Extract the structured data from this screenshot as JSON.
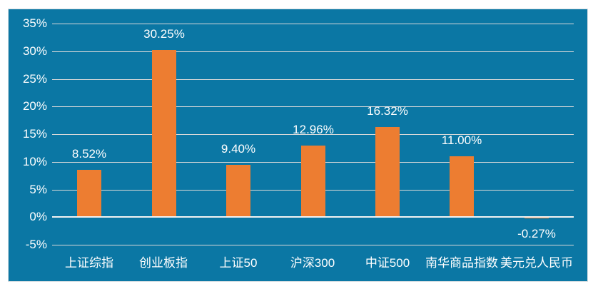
{
  "chart_data": {
    "type": "bar",
    "categories": [
      "上证综指",
      "创业板指",
      "上证50",
      "沪深300",
      "中证500",
      "南华商品指数",
      "美元兑人民币"
    ],
    "values": [
      8.52,
      30.25,
      9.4,
      12.96,
      16.32,
      11.0,
      -0.27
    ],
    "data_labels": [
      "8.52%",
      "30.25%",
      "9.40%",
      "12.96%",
      "16.32%",
      "11.00%",
      "-0.27%"
    ],
    "ylim": [
      -5,
      35
    ],
    "ytick_step": 5,
    "ytick_labels": [
      "35%",
      "30%",
      "25%",
      "20%",
      "15%",
      "10%",
      "5%",
      "0%",
      "-5%"
    ],
    "grid": true,
    "legend": false,
    "colors": {
      "panel_background": "#0B77A4",
      "bar": "#ED7D31",
      "gridline": "#D9D9D9",
      "zero_line": "#F2F2F2",
      "text": "#FFFFFF"
    }
  }
}
